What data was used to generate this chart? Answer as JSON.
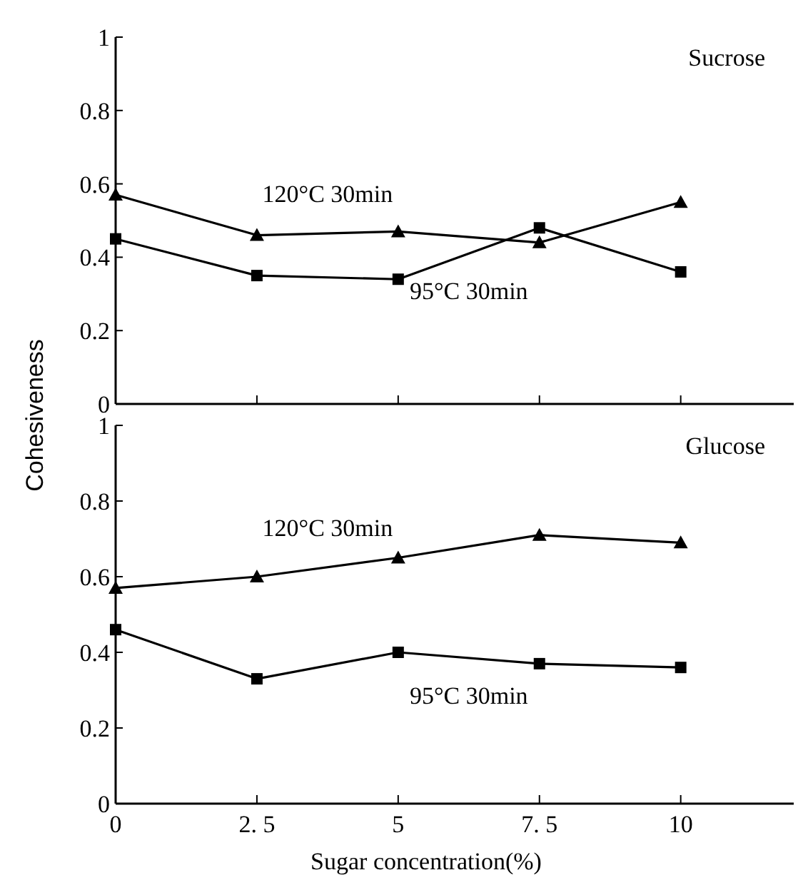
{
  "chart_data": [
    {
      "type": "line",
      "title": "Sucrose",
      "ylabel": "Cohesiveness",
      "x": [
        0,
        2.5,
        5,
        7.5,
        10
      ],
      "xlim": [
        0,
        12
      ],
      "xticks": [
        0,
        2.5,
        5,
        7.5,
        10
      ],
      "ylim": [
        0,
        1
      ],
      "yticks": [
        0,
        0.2,
        0.4,
        0.6,
        0.8,
        1
      ],
      "tick_labels": "y",
      "grid": false,
      "legend": false,
      "line_style": "solid",
      "series": [
        {
          "name": "120°C 30min",
          "color": "#000000",
          "marker": "triangle",
          "values": [
            0.57,
            0.46,
            0.47,
            0.44,
            0.55
          ]
        },
        {
          "name": "95°C 30min",
          "color": "#000000",
          "marker": "square",
          "values": [
            0.45,
            0.35,
            0.34,
            0.48,
            0.36
          ]
        }
      ]
    },
    {
      "type": "line",
      "title": "Glucose",
      "xlabel": "Sugar concentration(%)",
      "x": [
        0,
        2.5,
        5,
        7.5,
        10
      ],
      "xlim": [
        0,
        12
      ],
      "xticks": [
        0,
        {
          "value": 2.5,
          "label": "2. 5"
        },
        5,
        {
          "value": 7.5,
          "label": "7. 5"
        },
        10
      ],
      "ylim": [
        0,
        1
      ],
      "yticks": [
        0,
        0.2,
        0.4,
        0.6,
        0.8,
        1
      ],
      "grid": false,
      "legend": false,
      "line_style": "solid",
      "series": [
        {
          "name": "120°C 30min",
          "color": "#000000",
          "marker": "triangle",
          "values": [
            0.57,
            0.6,
            0.65,
            0.71,
            0.69
          ]
        },
        {
          "name": "95°C 30min",
          "color": "#000000",
          "marker": "square",
          "values": [
            0.46,
            0.33,
            0.4,
            0.37,
            0.36
          ]
        }
      ]
    }
  ]
}
